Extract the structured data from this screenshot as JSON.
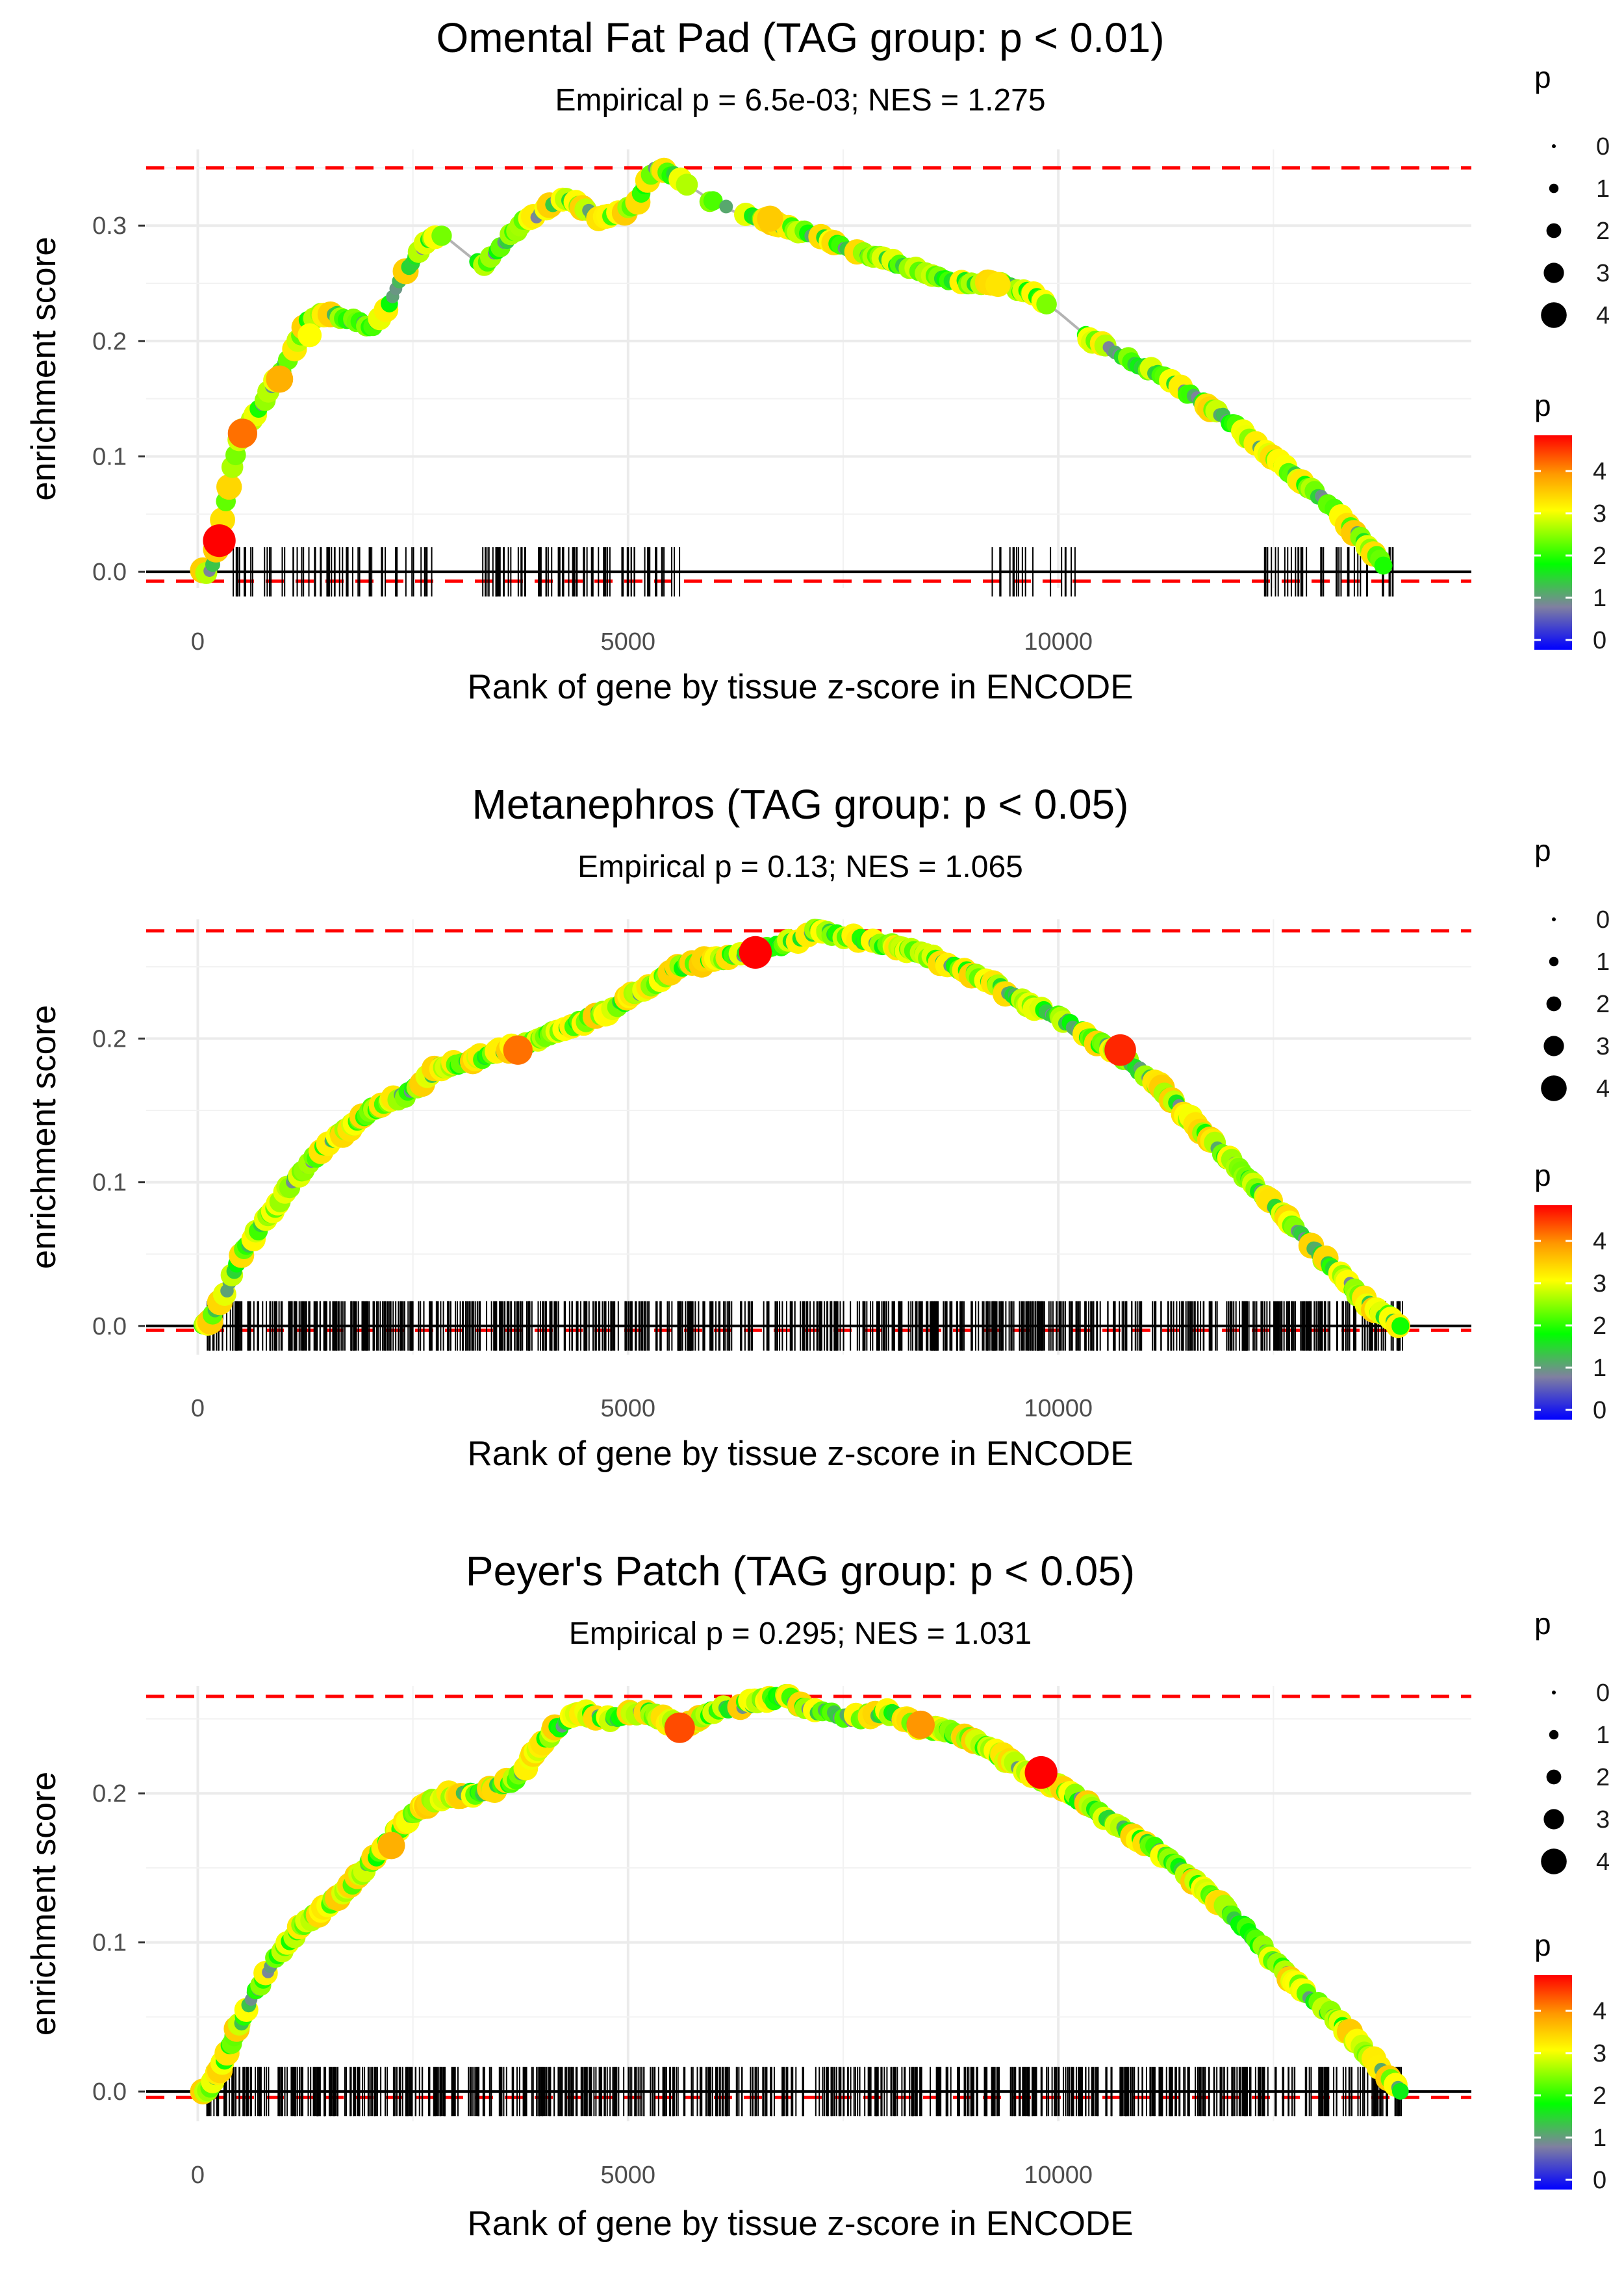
{
  "figure": {
    "description": "Three GSEA-style enrichment plots stacked vertically"
  },
  "chart_data": [
    {
      "type": "line",
      "title": "Omental Fat Pad (TAG group: p < 0.01)",
      "subtitle": "Empirical p = 6.5e-03; NES = 1.275",
      "xlabel": "Rank of gene by tissue z-score in ENCODE",
      "ylabel": "enrichment score",
      "xlim": [
        -600,
        14800
      ],
      "ylim": [
        -0.014,
        0.366
      ],
      "x_ticks": [
        0,
        5000,
        10000
      ],
      "y_ticks": [
        0.0,
        0.1,
        0.2,
        0.3
      ],
      "y_tick_labels": [
        "0.0",
        "0.1",
        "0.2",
        "0.3"
      ],
      "max_es": 0.35,
      "min_es": -0.008,
      "curve": {
        "x": [
          0,
          150,
          250,
          400,
          500,
          700,
          900,
          1100,
          1300,
          1500,
          1700,
          1900,
          2000,
          2200,
          2400,
          2600,
          2800,
          3300,
          3500,
          3800,
          4000,
          4200,
          4400,
          4700,
          4900,
          5100,
          5300,
          5500,
          5700,
          6000,
          6300,
          6600,
          7000,
          7400,
          7800,
          8200,
          8600,
          9000,
          9400,
          9700,
          10000,
          10400,
          10800,
          11200,
          11600,
          12000,
          12400,
          12800,
          13200,
          13500,
          13800
        ],
        "y": [
          0.0,
          0.0,
          0.03,
          0.09,
          0.12,
          0.14,
          0.165,
          0.19,
          0.22,
          0.225,
          0.22,
          0.215,
          0.21,
          0.23,
          0.26,
          0.28,
          0.295,
          0.265,
          0.28,
          0.305,
          0.31,
          0.325,
          0.32,
          0.305,
          0.31,
          0.32,
          0.35,
          0.345,
          0.335,
          0.32,
          0.31,
          0.305,
          0.295,
          0.285,
          0.275,
          0.265,
          0.255,
          0.25,
          0.25,
          0.24,
          0.225,
          0.2,
          0.185,
          0.17,
          0.15,
          0.13,
          0.105,
          0.08,
          0.055,
          0.03,
          0.005
        ]
      },
      "highlight_points": [
        {
          "x": 250,
          "y": 0.027,
          "p": 4.8
        },
        {
          "x": 520,
          "y": 0.12,
          "p": 4.2
        },
        {
          "x": 950,
          "y": 0.167,
          "p": 3.8
        },
        {
          "x": 1300,
          "y": 0.205,
          "p": 3.2
        },
        {
          "x": 6650,
          "y": 0.306,
          "p": 3.6
        },
        {
          "x": 9300,
          "y": 0.249,
          "p": 3.4
        }
      ],
      "hit_ranks": {
        "segments": [
          [
            300,
            2800,
            60
          ],
          [
            3300,
            5600,
            70
          ],
          [
            9200,
            10200,
            16
          ],
          [
            12400,
            13900,
            35
          ]
        ]
      },
      "legend_size": {
        "title": "p",
        "labels": [
          "0",
          "1",
          "2",
          "3",
          "4"
        ]
      },
      "legend_color": {
        "title": "p",
        "labels": [
          "4",
          "3",
          "2",
          "1",
          "0"
        ]
      }
    },
    {
      "type": "line",
      "title": "Metanephros (TAG group: p < 0.05)",
      "subtitle": "Empirical p = 0.13; NES = 1.065",
      "xlabel": "Rank of gene by tissue z-score in ENCODE",
      "ylabel": "enrichment score",
      "xlim": [
        -600,
        14800
      ],
      "ylim": [
        -0.02,
        0.283
      ],
      "x_ticks": [
        0,
        5000,
        10000
      ],
      "y_ticks": [
        0.0,
        0.1,
        0.2
      ],
      "y_tick_labels": [
        "0.0",
        "0.1",
        "0.2"
      ],
      "max_es": 0.275,
      "min_es": -0.003,
      "curve": {
        "x": [
          0,
          100,
          300,
          500,
          800,
          1100,
          1400,
          1700,
          2000,
          2400,
          2800,
          3200,
          3600,
          4000,
          4400,
          4800,
          5200,
          5600,
          6000,
          6400,
          6800,
          7200,
          7600,
          8000,
          8400,
          8800,
          9200,
          9600,
          10000,
          10400,
          10800,
          11200,
          11600,
          12000,
          12400,
          12800,
          13200,
          13600,
          14000
        ],
        "y": [
          0.0,
          0.0,
          0.02,
          0.05,
          0.075,
          0.1,
          0.12,
          0.135,
          0.15,
          0.16,
          0.18,
          0.185,
          0.193,
          0.2,
          0.21,
          0.22,
          0.235,
          0.25,
          0.255,
          0.26,
          0.265,
          0.275,
          0.27,
          0.265,
          0.26,
          0.25,
          0.24,
          0.225,
          0.215,
          0.2,
          0.185,
          0.165,
          0.14,
          0.115,
          0.09,
          0.065,
          0.04,
          0.015,
          0.0
        ]
      },
      "highlight_points": [
        {
          "x": 3720,
          "y": 0.192,
          "p": 4.2
        },
        {
          "x": 6480,
          "y": 0.26,
          "p": 4.8
        },
        {
          "x": 10720,
          "y": 0.192,
          "p": 4.6
        }
      ],
      "hit_ranks": {
        "segments": [
          [
            100,
            14000,
            650
          ]
        ]
      },
      "legend_size": {
        "title": "p",
        "labels": [
          "0",
          "1",
          "2",
          "3",
          "4"
        ]
      },
      "legend_color": {
        "title": "p",
        "labels": [
          "4",
          "3",
          "2",
          "1",
          "0"
        ]
      }
    },
    {
      "type": "line",
      "title": "Peyer's Patch (TAG group: p < 0.05)",
      "subtitle": "Empirical p = 0.295; NES = 1.031",
      "xlabel": "Rank of gene by tissue z-score in ENCODE",
      "ylabel": "enrichment score",
      "xlim": [
        -600,
        14800
      ],
      "ylim": [
        -0.02,
        0.272
      ],
      "x_ticks": [
        0,
        5000,
        10000
      ],
      "y_ticks": [
        0.0,
        0.1,
        0.2
      ],
      "y_tick_labels": [
        "0.0",
        "0.1",
        "0.2"
      ],
      "max_es": 0.265,
      "min_es": -0.004,
      "curve": {
        "x": [
          0,
          100,
          300,
          600,
          900,
          1200,
          1500,
          1800,
          2100,
          2400,
          2700,
          3000,
          3300,
          3700,
          4100,
          4400,
          4800,
          5200,
          5600,
          6000,
          6400,
          6800,
          7200,
          7600,
          8000,
          8400,
          8800,
          9200,
          9600,
          10000,
          10400,
          10800,
          11200,
          11600,
          12000,
          12400,
          12800,
          13200,
          13600,
          14000
        ],
        "y": [
          0.0,
          0.0,
          0.02,
          0.06,
          0.09,
          0.11,
          0.125,
          0.14,
          0.16,
          0.18,
          0.195,
          0.2,
          0.2,
          0.21,
          0.24,
          0.255,
          0.25,
          0.255,
          0.245,
          0.255,
          0.26,
          0.265,
          0.255,
          0.25,
          0.255,
          0.245,
          0.24,
          0.23,
          0.215,
          0.205,
          0.19,
          0.175,
          0.16,
          0.14,
          0.12,
          0.095,
          0.07,
          0.05,
          0.025,
          0.0
        ]
      },
      "highlight_points": [
        {
          "x": 2250,
          "y": 0.165,
          "p": 3.8
        },
        {
          "x": 5600,
          "y": 0.244,
          "p": 4.4
        },
        {
          "x": 8400,
          "y": 0.246,
          "p": 4.0
        },
        {
          "x": 9800,
          "y": 0.214,
          "p": 4.8
        }
      ],
      "hit_ranks": {
        "segments": [
          [
            100,
            14000,
            620
          ]
        ]
      },
      "legend_size": {
        "title": "p",
        "labels": [
          "0",
          "1",
          "2",
          "3",
          "4"
        ]
      },
      "legend_color": {
        "title": "p",
        "labels": [
          "4",
          "3",
          "2",
          "1",
          "0"
        ]
      }
    }
  ],
  "colors": {
    "max_line": "#ff0000",
    "min_line": "#ff0000",
    "zero_line": "#000000",
    "curve": "#b3b3b3",
    "hit_tick": "#000000",
    "grid": "#ebebeb",
    "color_scale": [
      "#0000ff",
      "#808080",
      "#00ff00",
      "#ffff00",
      "#ff8800",
      "#ff0000"
    ]
  }
}
